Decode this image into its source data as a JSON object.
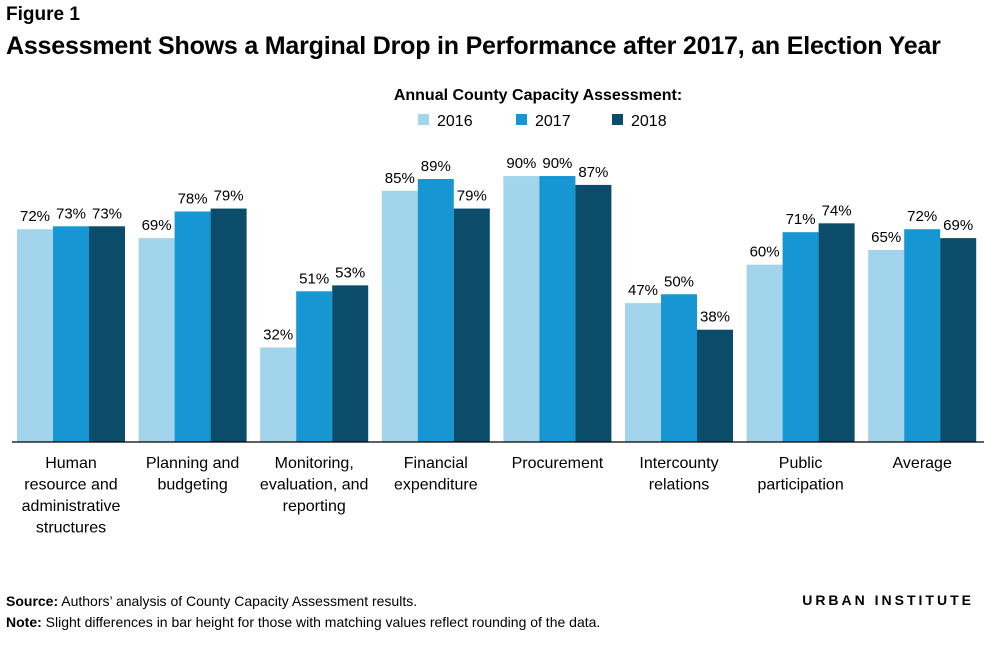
{
  "header": {
    "figure_label": "Figure 1",
    "title": "Assessment Shows a Marginal Drop in Performance after 2017, an Election Year"
  },
  "legend": {
    "title": "Annual County Capacity Assessment:",
    "placement": "top-center"
  },
  "colors": {
    "2016": "#a2d4ec",
    "2017": "#1696d2",
    "2018": "#0a4c6a"
  },
  "chart_data": {
    "type": "bar",
    "title": "Assessment Shows a Marginal Drop in Performance after 2017, an Election Year",
    "xlabel": "",
    "ylabel": "",
    "ylim": [
      0,
      100
    ],
    "grid": false,
    "legend_title": "Annual County Capacity Assessment:",
    "categories": [
      [
        "Human",
        "resource and",
        "administrative",
        "structures"
      ],
      [
        "Planning and",
        "budgeting"
      ],
      [
        "Monitoring,",
        "evaluation, and",
        "reporting"
      ],
      [
        "Financial",
        "expenditure"
      ],
      [
        "Procurement"
      ],
      [
        "Intercounty",
        "relations"
      ],
      [
        "Public",
        "participation"
      ],
      [
        "Average"
      ]
    ],
    "series": [
      {
        "name": "2016",
        "values": [
          72,
          69,
          32,
          85,
          90,
          47,
          60,
          65
        ],
        "labels": [
          "72%",
          "69%",
          "32%",
          "85%",
          "90%",
          "47%",
          "60%",
          "65%"
        ]
      },
      {
        "name": "2017",
        "values": [
          73,
          78,
          51,
          89,
          90,
          50,
          71,
          72
        ],
        "labels": [
          "73%",
          "78%",
          "51%",
          "89%",
          "90%",
          "50%",
          "71%",
          "72%"
        ]
      },
      {
        "name": "2018",
        "values": [
          73,
          79,
          53,
          79,
          87,
          38,
          74,
          69
        ],
        "labels": [
          "73%",
          "79%",
          "53%",
          "79%",
          "87%",
          "38%",
          "74%",
          "69%"
        ]
      }
    ]
  },
  "footer": {
    "source_label": "Source:",
    "source_text": " Authors’ analysis of County Capacity Assessment results.",
    "note_label": "Note:",
    "note_text": " Slight differences in bar height for those with matching values reflect rounding of the data."
  },
  "brand": {
    "part1": "URBAN",
    "part2": "INSTITUTE"
  }
}
